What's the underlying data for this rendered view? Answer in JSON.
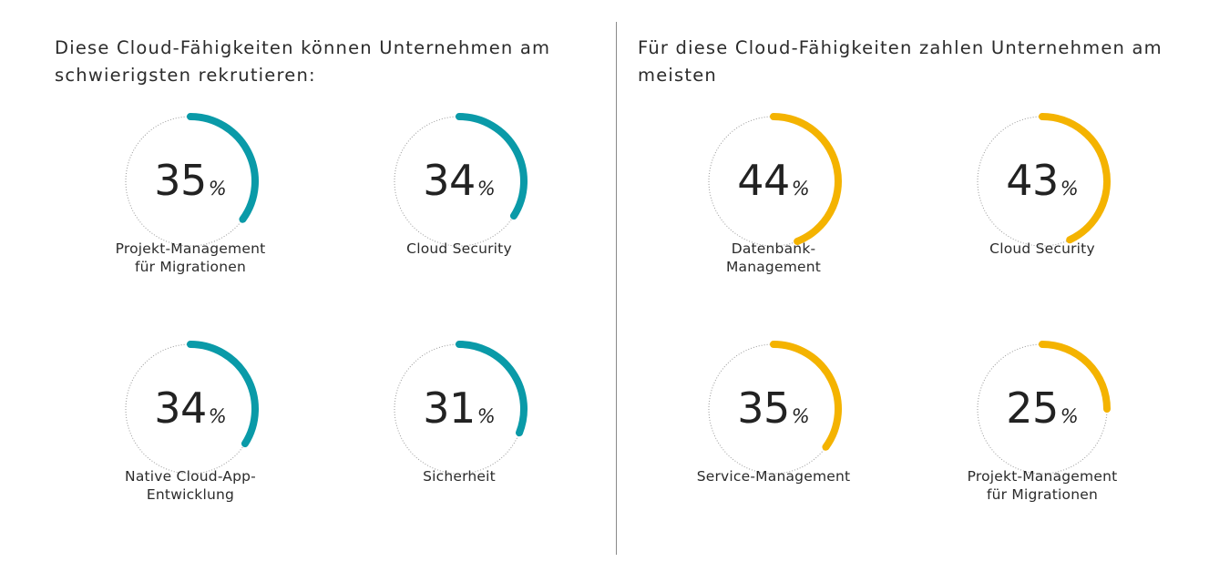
{
  "left_panel": {
    "title": "Diese Cloud-Fähigkeiten können Unternehmen am schwierigsten rekrutieren:"
  },
  "right_panel": {
    "title": "Für diese Cloud-Fähigkeiten zahlen Unternehmen am meisten"
  },
  "percent_sign": "%",
  "colors": {
    "teal": "#0a9aa8",
    "amber": "#f4b300",
    "track": "#9a9a9a"
  },
  "chart_data": [
    {
      "type": "donut",
      "title": "Diese Cloud-Fähigkeiten können Unternehmen am schwierigsten rekrutieren:",
      "unit": "%",
      "color": "#0a9aa8",
      "items": [
        {
          "label": "Projekt-Management\nfür Migrationen",
          "value": 35
        },
        {
          "label": "Cloud Security",
          "value": 34
        },
        {
          "label": "Native Cloud-App-\nEntwicklung",
          "value": 34
        },
        {
          "label": "Sicherheit",
          "value": 31
        }
      ]
    },
    {
      "type": "donut",
      "title": "Für diese Cloud-Fähigkeiten zahlen Unternehmen am meisten",
      "unit": "%",
      "color": "#f4b300",
      "items": [
        {
          "label": "Datenbank-\nManagement",
          "value": 44
        },
        {
          "label": "Cloud Security",
          "value": 43
        },
        {
          "label": "Service-Management",
          "value": 35
        },
        {
          "label": "Projekt-Management\nfür Migrationen",
          "value": 25
        }
      ]
    }
  ]
}
